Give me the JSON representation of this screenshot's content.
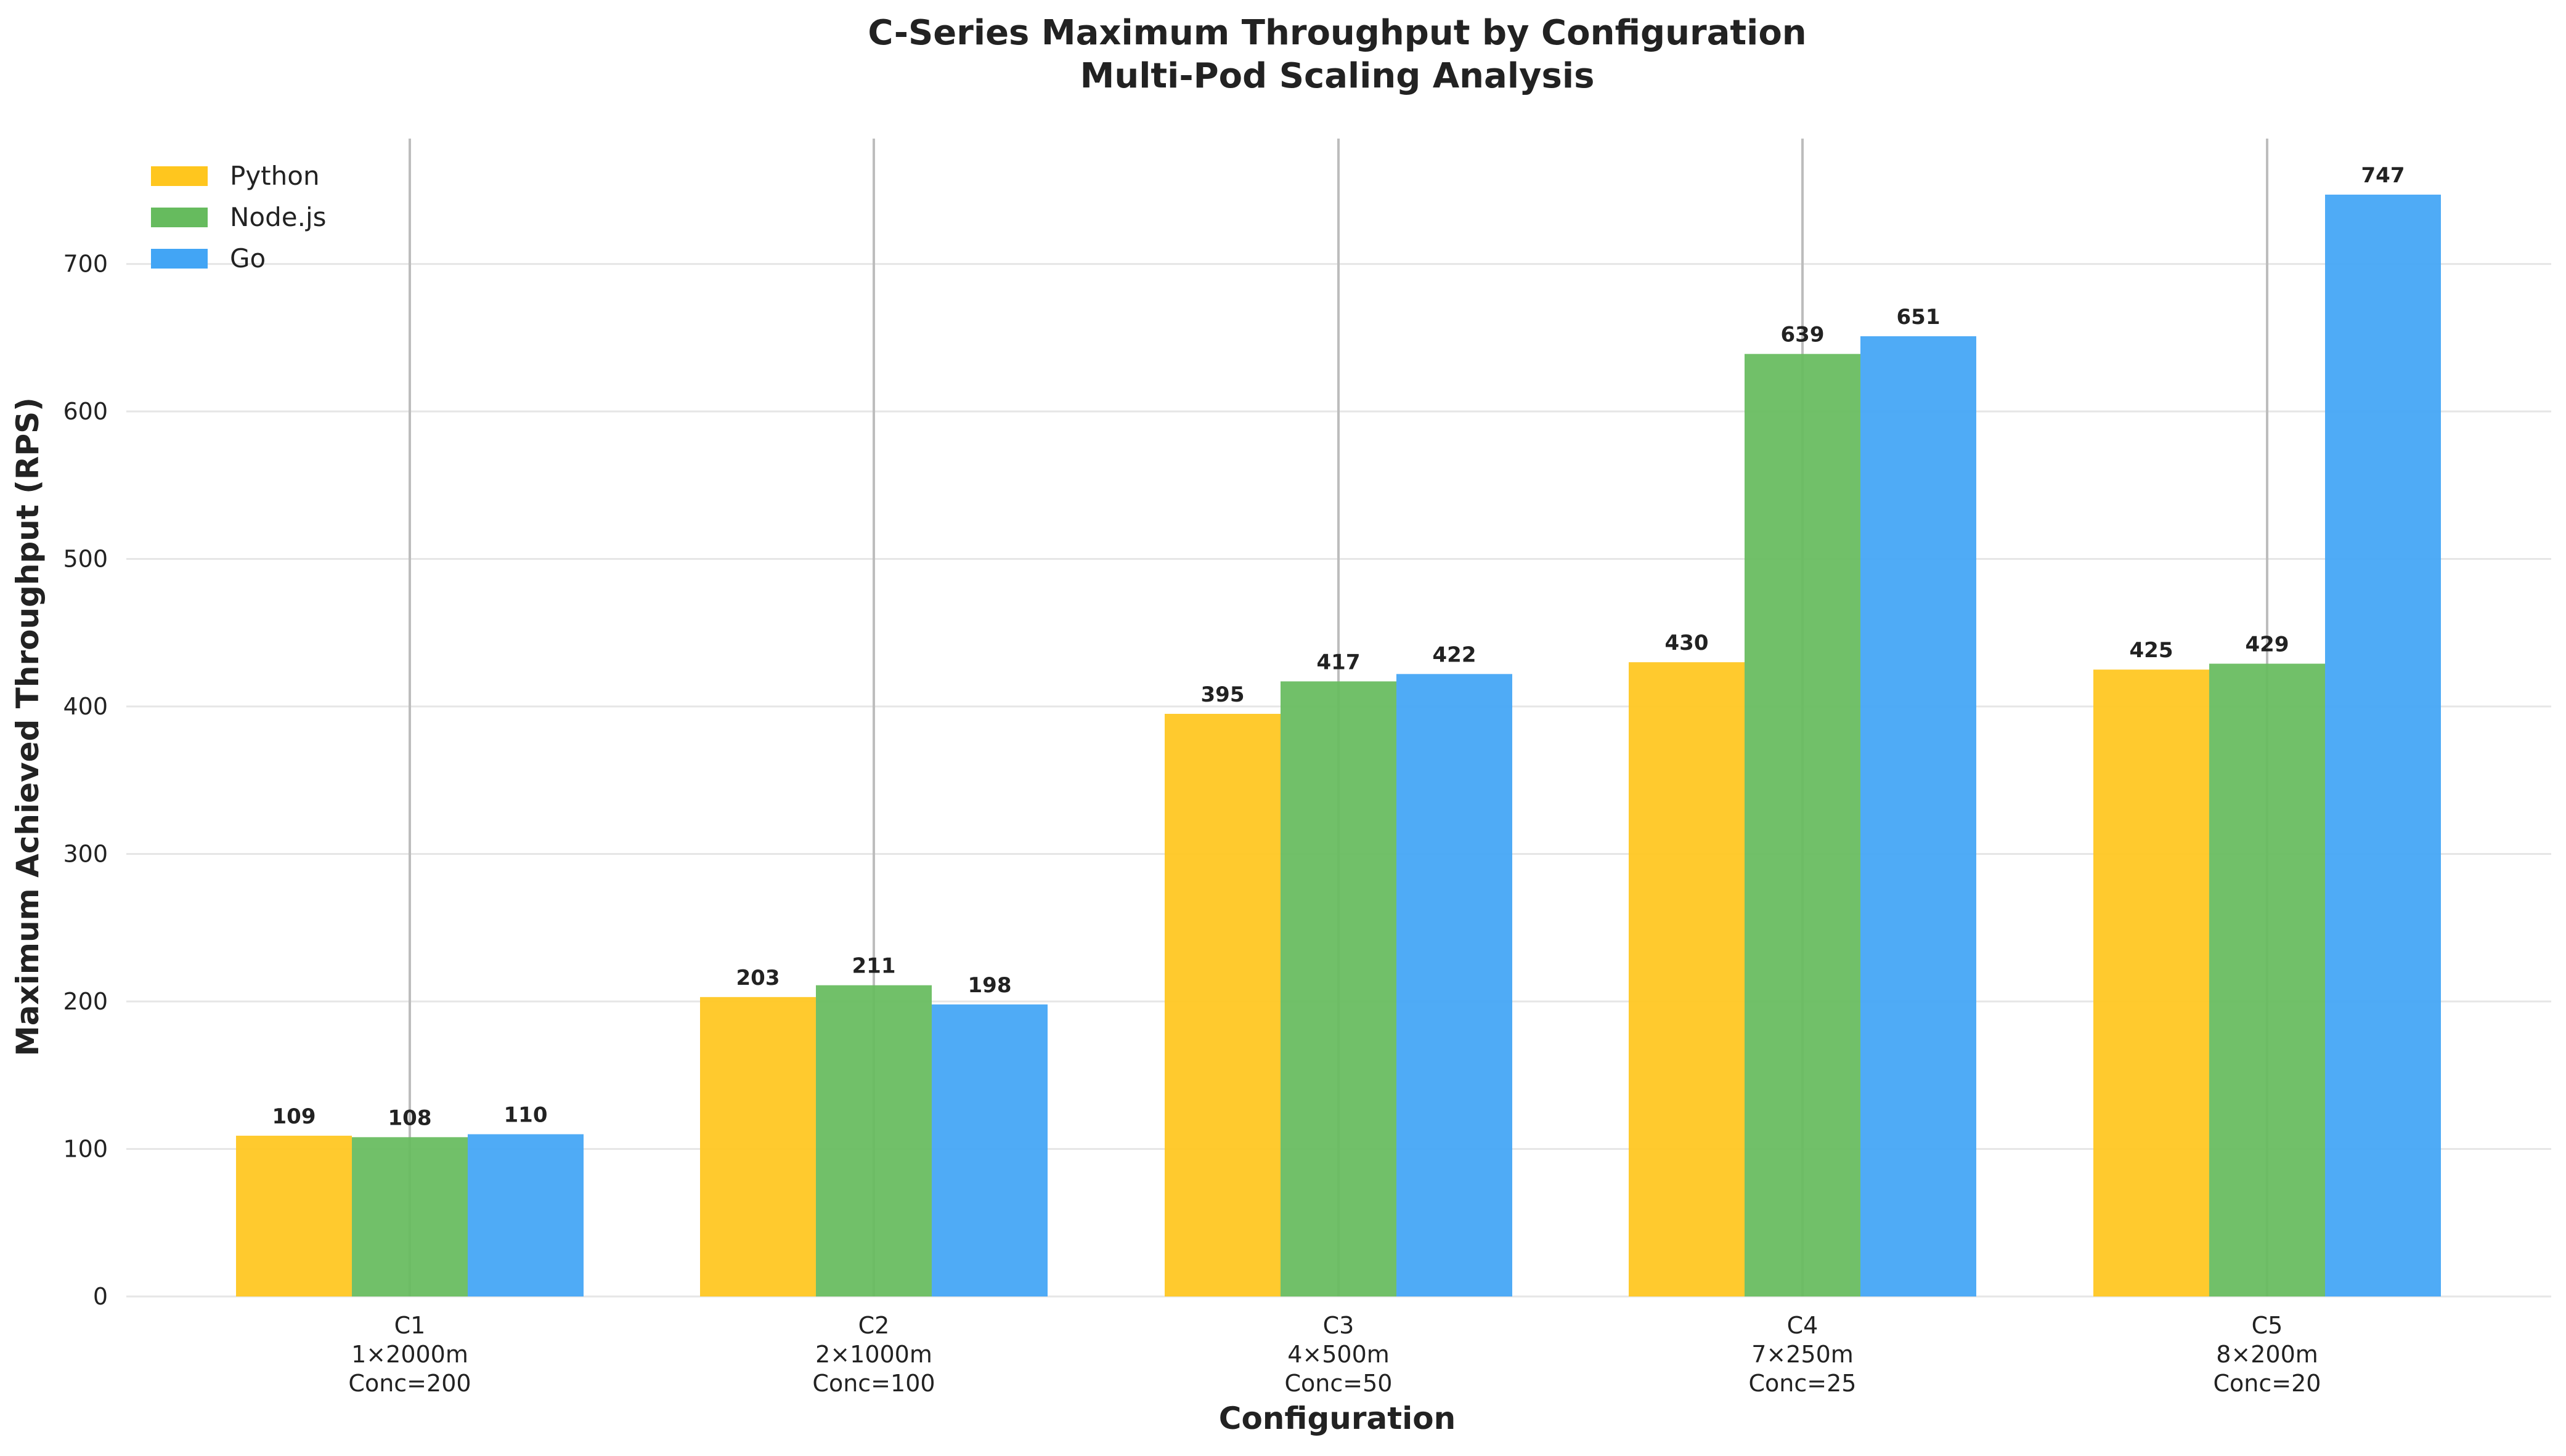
{
  "chart_data": {
    "type": "bar",
    "title": "C-Series Maximum Throughput by Configuration",
    "subtitle": "Multi-Pod Scaling Analysis",
    "xlabel": "Configuration",
    "ylabel": "Maximum Achieved Throughput (RPS)",
    "ylim": [
      0,
      785
    ],
    "yticks": [
      0,
      100,
      200,
      300,
      400,
      500,
      600,
      700
    ],
    "grid": true,
    "legend_position": "top-left",
    "categories": [
      {
        "name": "C1",
        "pods": "1×2000m",
        "conc": "Conc=200"
      },
      {
        "name": "C2",
        "pods": "2×1000m",
        "conc": "Conc=100"
      },
      {
        "name": "C3",
        "pods": "4×500m",
        "conc": "Conc=50"
      },
      {
        "name": "C4",
        "pods": "7×250m",
        "conc": "Conc=25"
      },
      {
        "name": "C5",
        "pods": "8×200m",
        "conc": "Conc=20"
      }
    ],
    "series": [
      {
        "name": "Python",
        "color": "#FFC61E",
        "values": [
          109,
          203,
          395,
          430,
          425
        ]
      },
      {
        "name": "Node.js",
        "color": "#66BB5E",
        "values": [
          108,
          211,
          417,
          639,
          429
        ]
      },
      {
        "name": "Go",
        "color": "#42A5F5",
        "values": [
          110,
          198,
          422,
          651,
          747
        ]
      }
    ]
  }
}
